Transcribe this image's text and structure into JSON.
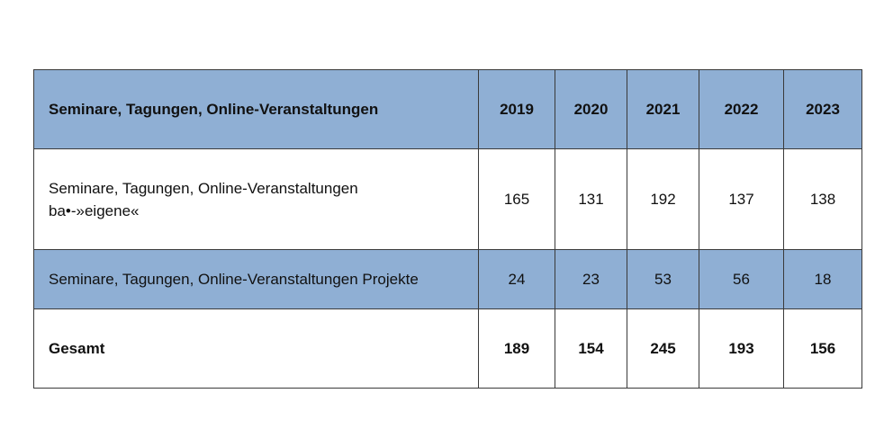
{
  "table": {
    "header": {
      "label": "Seminare, Tagungen, Online-Veranstaltungen",
      "years": [
        "2019",
        "2020",
        "2021",
        "2022",
        "2023"
      ]
    },
    "rows": [
      {
        "label_line1": "Seminare, Tagungen, Online-Veranstaltungen",
        "label_line2": "ba•-»eigene«",
        "values": [
          "165",
          "131",
          "192",
          "137",
          "138"
        ]
      },
      {
        "label_line1": "Seminare, Tagungen, Online-Veranstaltungen Projekte",
        "values": [
          "24",
          "23",
          "53",
          "56",
          "18"
        ]
      }
    ],
    "total": {
      "label": "Gesamt",
      "values": [
        "189",
        "154",
        "245",
        "193",
        "156"
      ]
    }
  },
  "colors": {
    "header_fill": "#8fafd4",
    "alt_row_fill": "#8fafd4",
    "border": "#3a3a3a"
  }
}
